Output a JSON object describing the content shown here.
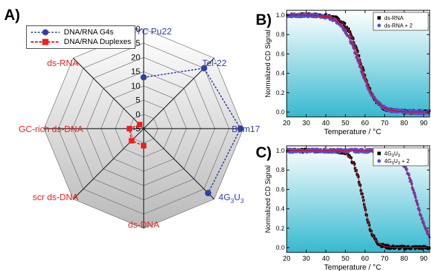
{
  "panels": {
    "a_label": "A)",
    "b_label": "B)",
    "c_label": "C)"
  },
  "colors": {
    "g4": "#2f3fa5",
    "duplex": "#e8211f",
    "curve_fit": "#c8102e",
    "grid": "#555555",
    "plot_bg_top": "#ffffff",
    "plot_bg_bottom": "#36b9d0",
    "series_black": "#000000",
    "series_blue": "#5b50c8"
  },
  "chart_data": [
    {
      "type": "radar",
      "rmin": -5,
      "rmax": 30,
      "ticks": [
        "-5",
        "0",
        "5",
        "10",
        "15",
        "20",
        "25",
        "30"
      ],
      "tick_values": [
        -5,
        0,
        5,
        10,
        15,
        20,
        25,
        30
      ],
      "axes": [
        {
          "label": "c-MYC",
          "label2": " Pu22",
          "color": "#2f3fa5"
        },
        {
          "label": "Tel-22",
          "label2": "",
          "color": "#2f3fa5"
        },
        {
          "label": "Bom17",
          "label2": "",
          "color": "#2f3fa5"
        },
        {
          "label": "4G",
          "sub1": "3",
          "mid": "U",
          "sub2": "3",
          "color": "#2f3fa5"
        },
        {
          "label": "ds-DNA",
          "label2": "",
          "color": "#e8211f"
        },
        {
          "label": "scr ds-DNA",
          "label2": "",
          "color": "#e8211f"
        },
        {
          "label": "GC-rich ds-DNA",
          "label2": "",
          "color": "#e8211f"
        },
        {
          "label": "ds-RNA",
          "label2": "",
          "color": "#e8211f"
        }
      ],
      "legend": [
        {
          "name": "DNA/RNA G4s",
          "marker": "circle"
        },
        {
          "name": "DNA/RNA Duplexes",
          "marker": "square"
        }
      ],
      "series": [
        {
          "name": "DNA/RNA G4s",
          "values": [
            13,
            25,
            29,
            27,
            null,
            null,
            null,
            null
          ]
        },
        {
          "name": "DNA/RNA Duplexes",
          "values": [
            null,
            null,
            null,
            null,
            1,
            1,
            0,
            -3
          ]
        }
      ]
    },
    {
      "type": "scatter",
      "xlabel": "Temperature / °C",
      "ylabel": "Normalized CD Signal",
      "xlim": [
        20,
        93
      ],
      "ylim": [
        -0.05,
        1.05
      ],
      "xticks": [
        20,
        30,
        40,
        50,
        60,
        70,
        80,
        90
      ],
      "yticks": [
        "0.0",
        "0.2",
        "0.4",
        "0.6",
        "0.8",
        "1.0"
      ],
      "ytick_values": [
        0.0,
        0.2,
        0.4,
        0.6,
        0.8,
        1.0
      ],
      "series": [
        {
          "name": "ds-RNA",
          "marker": "square",
          "tm": 58,
          "slope": 3.8
        },
        {
          "name": "ds-RNA + 2",
          "marker": "circle",
          "tm": 57,
          "slope": 4.3
        }
      ]
    },
    {
      "type": "scatter",
      "xlabel": "Temperature / °C",
      "ylabel": "Normalized CD Signal",
      "xlim": [
        20,
        93
      ],
      "ylim": [
        -0.05,
        1.05
      ],
      "xticks": [
        20,
        30,
        40,
        50,
        60,
        70,
        80,
        90
      ],
      "yticks": [
        "0.0",
        "0.2",
        "0.4",
        "0.6",
        "0.8",
        "1.0"
      ],
      "ytick_values": [
        0.0,
        0.2,
        0.4,
        0.6,
        0.8,
        1.0
      ],
      "series": [
        {
          "name": "4G",
          "name_sub1": "3",
          "name_mid": "U",
          "name_sub2": "3",
          "name_suffix": "",
          "marker": "square",
          "tm": 59,
          "slope": 2.6
        },
        {
          "name": "4G",
          "name_sub1": "3",
          "name_mid": "U",
          "name_sub2": "3",
          "name_suffix": " + 2",
          "marker": "circle",
          "tm": 86,
          "slope": 3.5
        }
      ]
    }
  ]
}
